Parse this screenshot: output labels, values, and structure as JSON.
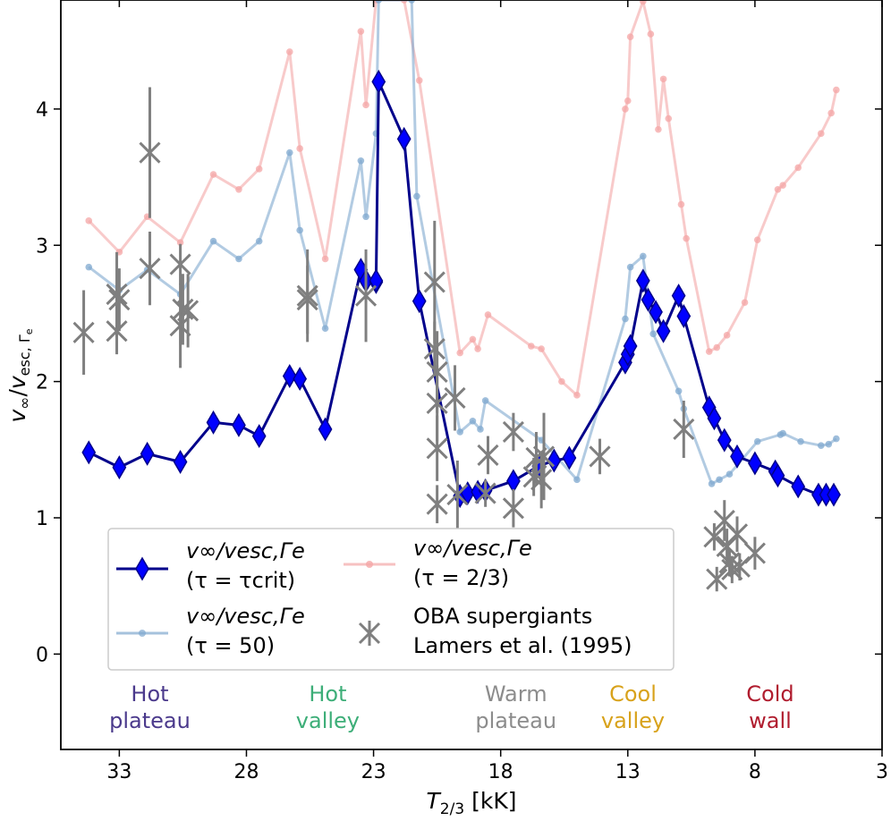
{
  "chart_data": {
    "type": "line",
    "xlabel": "T_{2/3} [kK]",
    "ylabel": "v∞/vesc,Γe",
    "xlim": [
      35.3,
      3
    ],
    "ylim": [
      -0.7,
      4.8
    ],
    "x_inverted": true,
    "x_ticks": [
      "33",
      "28",
      "23",
      "18",
      "13",
      "8",
      "3"
    ],
    "y_ticks": [
      "0",
      "1",
      "2",
      "3",
      "4"
    ],
    "legend_position": "lower-left",
    "series": [
      {
        "name": "v∞/vesc,Γe (τ = τcrit)",
        "color": "#0000cc",
        "points": [
          [
            34.2,
            1.48
          ],
          [
            33.0,
            1.37
          ],
          [
            31.9,
            1.47
          ],
          [
            30.6,
            1.41
          ],
          [
            29.3,
            1.7
          ],
          [
            28.3,
            1.68
          ],
          [
            27.5,
            1.6
          ],
          [
            26.3,
            2.04
          ],
          [
            25.9,
            2.02
          ],
          [
            24.9,
            1.65
          ],
          [
            23.5,
            2.82
          ],
          [
            23.3,
            2.74
          ],
          [
            22.9,
            2.73
          ],
          [
            22.9,
            2.74
          ],
          [
            22.8,
            4.2
          ],
          [
            21.8,
            3.78
          ],
          [
            21.2,
            2.59
          ],
          [
            19.6,
            1.16
          ],
          [
            19.3,
            1.18
          ],
          [
            18.9,
            1.19
          ],
          [
            18.6,
            1.2
          ],
          [
            17.5,
            1.27
          ],
          [
            16.5,
            1.38
          ],
          [
            15.9,
            1.42
          ],
          [
            15.3,
            1.44
          ],
          [
            13.1,
            2.14
          ],
          [
            13.0,
            2.2
          ],
          [
            12.9,
            2.26
          ],
          [
            12.4,
            2.74
          ],
          [
            12.2,
            2.6
          ],
          [
            11.9,
            2.51
          ],
          [
            11.6,
            2.37
          ],
          [
            11.0,
            2.63
          ],
          [
            10.8,
            2.48
          ],
          [
            9.8,
            1.81
          ],
          [
            9.6,
            1.73
          ],
          [
            9.2,
            1.57
          ],
          [
            8.7,
            1.45
          ],
          [
            8.0,
            1.4
          ],
          [
            7.2,
            1.34
          ],
          [
            7.1,
            1.31
          ],
          [
            6.3,
            1.23
          ],
          [
            5.5,
            1.17
          ],
          [
            5.2,
            1.17
          ],
          [
            4.9,
            1.17
          ]
        ]
      },
      {
        "name": "v∞/vesc,Γe (τ = 50)",
        "color": "#7fa8cf",
        "points": [
          [
            34.2,
            2.84
          ],
          [
            33.0,
            2.67
          ],
          [
            31.9,
            2.82
          ],
          [
            30.6,
            2.64
          ],
          [
            29.3,
            3.03
          ],
          [
            28.3,
            2.9
          ],
          [
            27.5,
            3.03
          ],
          [
            26.3,
            3.68
          ],
          [
            25.9,
            3.11
          ],
          [
            24.9,
            2.39
          ],
          [
            23.5,
            3.62
          ],
          [
            23.3,
            3.21
          ],
          [
            22.9,
            3.82
          ],
          [
            22.8,
            4.8
          ],
          [
            21.5,
            4.8
          ],
          [
            21.3,
            3.36
          ],
          [
            19.6,
            1.63
          ],
          [
            19.1,
            1.71
          ],
          [
            18.8,
            1.65
          ],
          [
            18.6,
            1.86
          ],
          [
            16.4,
            1.57
          ],
          [
            15.0,
            1.28
          ],
          [
            13.1,
            2.46
          ],
          [
            12.9,
            2.84
          ],
          [
            12.4,
            2.92
          ],
          [
            12.0,
            2.35
          ],
          [
            11.0,
            1.93
          ],
          [
            10.8,
            1.8
          ],
          [
            9.7,
            1.25
          ],
          [
            9.4,
            1.28
          ],
          [
            9.0,
            1.32
          ],
          [
            7.9,
            1.56
          ],
          [
            7.0,
            1.61
          ],
          [
            6.9,
            1.62
          ],
          [
            6.2,
            1.56
          ],
          [
            5.4,
            1.53
          ],
          [
            5.1,
            1.54
          ],
          [
            4.8,
            1.58
          ]
        ]
      },
      {
        "name": "v∞/vesc,Γe (τ = 2/3)",
        "color": "#f4a6a6",
        "points": [
          [
            34.2,
            3.18
          ],
          [
            33.0,
            2.95
          ],
          [
            31.9,
            3.21
          ],
          [
            30.6,
            3.02
          ],
          [
            29.3,
            3.52
          ],
          [
            28.3,
            3.41
          ],
          [
            27.5,
            3.56
          ],
          [
            26.3,
            4.42
          ],
          [
            25.9,
            3.71
          ],
          [
            24.9,
            2.9
          ],
          [
            23.5,
            4.57
          ],
          [
            23.3,
            4.03
          ],
          [
            22.9,
            4.8
          ],
          [
            21.8,
            4.8
          ],
          [
            21.2,
            4.21
          ],
          [
            19.6,
            2.21
          ],
          [
            19.1,
            2.31
          ],
          [
            18.9,
            2.24
          ],
          [
            18.5,
            2.49
          ],
          [
            16.8,
            2.26
          ],
          [
            16.4,
            2.24
          ],
          [
            15.6,
            2.0
          ],
          [
            15.0,
            1.9
          ],
          [
            13.1,
            4.0
          ],
          [
            13.0,
            4.06
          ],
          [
            12.9,
            4.53
          ],
          [
            12.4,
            4.79
          ],
          [
            12.1,
            4.55
          ],
          [
            11.8,
            3.85
          ],
          [
            11.6,
            4.22
          ],
          [
            11.4,
            3.93
          ],
          [
            10.9,
            3.3
          ],
          [
            10.7,
            3.05
          ],
          [
            9.8,
            2.22
          ],
          [
            9.5,
            2.25
          ],
          [
            9.1,
            2.34
          ],
          [
            8.4,
            2.58
          ],
          [
            7.9,
            3.04
          ],
          [
            7.1,
            3.41
          ],
          [
            6.9,
            3.44
          ],
          [
            6.3,
            3.57
          ],
          [
            5.4,
            3.82
          ],
          [
            5.0,
            3.97
          ],
          [
            4.8,
            4.14
          ]
        ]
      }
    ],
    "observations": {
      "name": "OBA supergiants Lamers et al. (1995)",
      "color": "#7f7f7f",
      "points": [
        [
          34.4,
          2.36,
          0.31
        ],
        [
          33.1,
          2.37,
          0.17
        ],
        [
          33.1,
          2.64,
          0.31
        ],
        [
          33.0,
          2.6,
          0.23
        ],
        [
          31.8,
          3.68,
          0.48
        ],
        [
          31.8,
          2.83,
          0.27
        ],
        [
          30.6,
          2.86,
          0.15
        ],
        [
          30.6,
          2.41,
          0.31
        ],
        [
          30.5,
          2.53,
          0.26
        ],
        [
          30.3,
          2.52,
          0.27
        ],
        [
          25.6,
          2.63,
          0.34
        ],
        [
          25.6,
          2.6,
          0.25
        ],
        [
          23.3,
          2.63,
          0.34
        ],
        [
          20.6,
          2.73,
          0.45
        ],
        [
          20.6,
          2.24,
          0.2
        ],
        [
          20.5,
          2.07,
          0.3
        ],
        [
          20.5,
          1.84,
          0.28
        ],
        [
          20.5,
          1.51,
          0.24
        ],
        [
          20.5,
          1.1,
          0.14
        ],
        [
          19.8,
          1.88,
          0.24
        ],
        [
          19.7,
          1.17,
          0.25
        ],
        [
          18.5,
          1.46,
          0.14
        ],
        [
          18.6,
          1.18,
          0.1
        ],
        [
          17.5,
          1.63,
          0.14
        ],
        [
          17.5,
          1.07,
          0.14
        ],
        [
          16.7,
          1.3,
          0.14
        ],
        [
          16.6,
          1.44,
          0.19
        ],
        [
          16.3,
          1.45,
          0.32
        ],
        [
          16.4,
          1.28,
          0.21
        ],
        [
          14.1,
          1.45,
          0.13
        ],
        [
          10.8,
          1.65,
          0.21
        ],
        [
          9.6,
          0.86,
          0.1
        ],
        [
          9.5,
          0.55,
          0.09
        ],
        [
          9.2,
          0.98,
          0.15
        ],
        [
          9.1,
          0.79,
          0.13
        ],
        [
          9.0,
          0.67,
          0.1
        ],
        [
          8.9,
          0.62,
          0.1
        ],
        [
          8.7,
          0.88,
          0.13
        ],
        [
          8.6,
          0.64,
          0.1
        ],
        [
          8.0,
          0.74,
          0.12
        ]
      ]
    },
    "regions": [
      {
        "label": "Hot\nplateau",
        "x": 31.8,
        "color": "#4b3a8c"
      },
      {
        "label": "Hot\nvalley",
        "x": 24.8,
        "color": "#3dae78"
      },
      {
        "label": "Warm\nplateau",
        "x": 17.4,
        "color": "#8c8c8c"
      },
      {
        "label": "Cool\nvalley",
        "x": 12.8,
        "color": "#d8a21b"
      },
      {
        "label": "Cold\nwall",
        "x": 7.4,
        "color": "#b01c2e"
      }
    ],
    "legend": {
      "entry1_line1": "v∞/vesc,Γe",
      "entry1_line2": "(τ = τcrit)",
      "entry2_line1": "v∞/vesc,Γe",
      "entry2_line2": "(τ = 50)",
      "entry3_line1": "v∞/vesc,Γe",
      "entry3_line2": "(τ = 2/3)",
      "entry4_line1": "OBA supergiants",
      "entry4_line2": "Lamers et al. (1995)"
    }
  }
}
